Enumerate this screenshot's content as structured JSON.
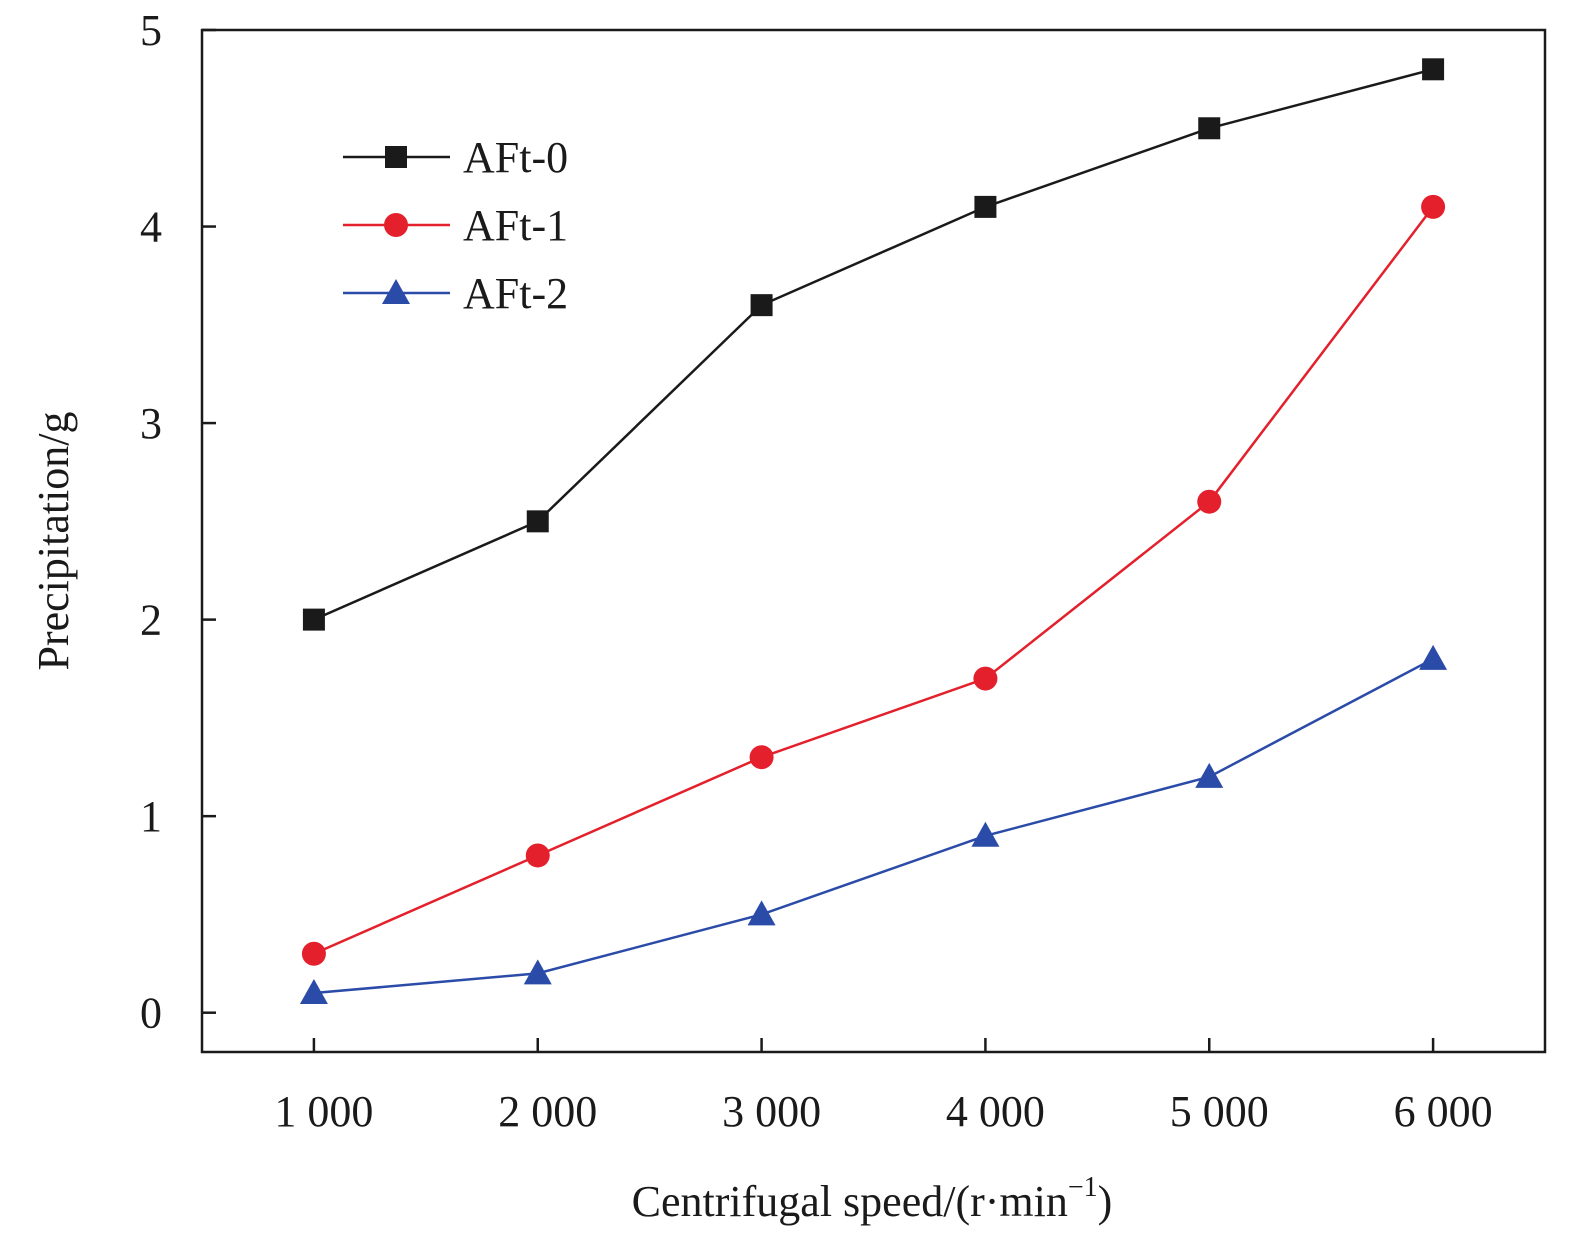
{
  "chart_data": {
    "type": "line",
    "title": "",
    "xlabel": "Centrifugal speed/(r·min",
    "xlabel_superscript": "−1",
    "xlabel_suffix": ")",
    "ylabel": "Precipitation/g",
    "x": [
      1000,
      2000,
      3000,
      4000,
      5000,
      6000
    ],
    "x_tick_labels": [
      "1 000",
      "2 000",
      "3 000",
      "4 000",
      "5 000",
      "6 000"
    ],
    "y_ticks": [
      0,
      1,
      2,
      3,
      4,
      5
    ],
    "y_tick_labels": [
      "0",
      "1",
      "2",
      "3",
      "4",
      "5"
    ],
    "xlim": [
      500,
      6500
    ],
    "ylim": [
      -0.2,
      5
    ],
    "grid": false,
    "legend_position": "top-left",
    "series": [
      {
        "name": "AFt-0",
        "color": "#1a1a1a",
        "marker": "square",
        "values": [
          2.0,
          2.5,
          3.6,
          4.1,
          4.5,
          4.8
        ]
      },
      {
        "name": "AFt-1",
        "color": "#e3202b",
        "marker": "circle",
        "values": [
          0.3,
          0.8,
          1.3,
          1.7,
          2.6,
          4.1
        ]
      },
      {
        "name": "AFt-2",
        "color": "#2b4ba8",
        "marker": "triangle",
        "values": [
          0.1,
          0.2,
          0.5,
          0.9,
          1.2,
          1.8
        ]
      }
    ]
  }
}
